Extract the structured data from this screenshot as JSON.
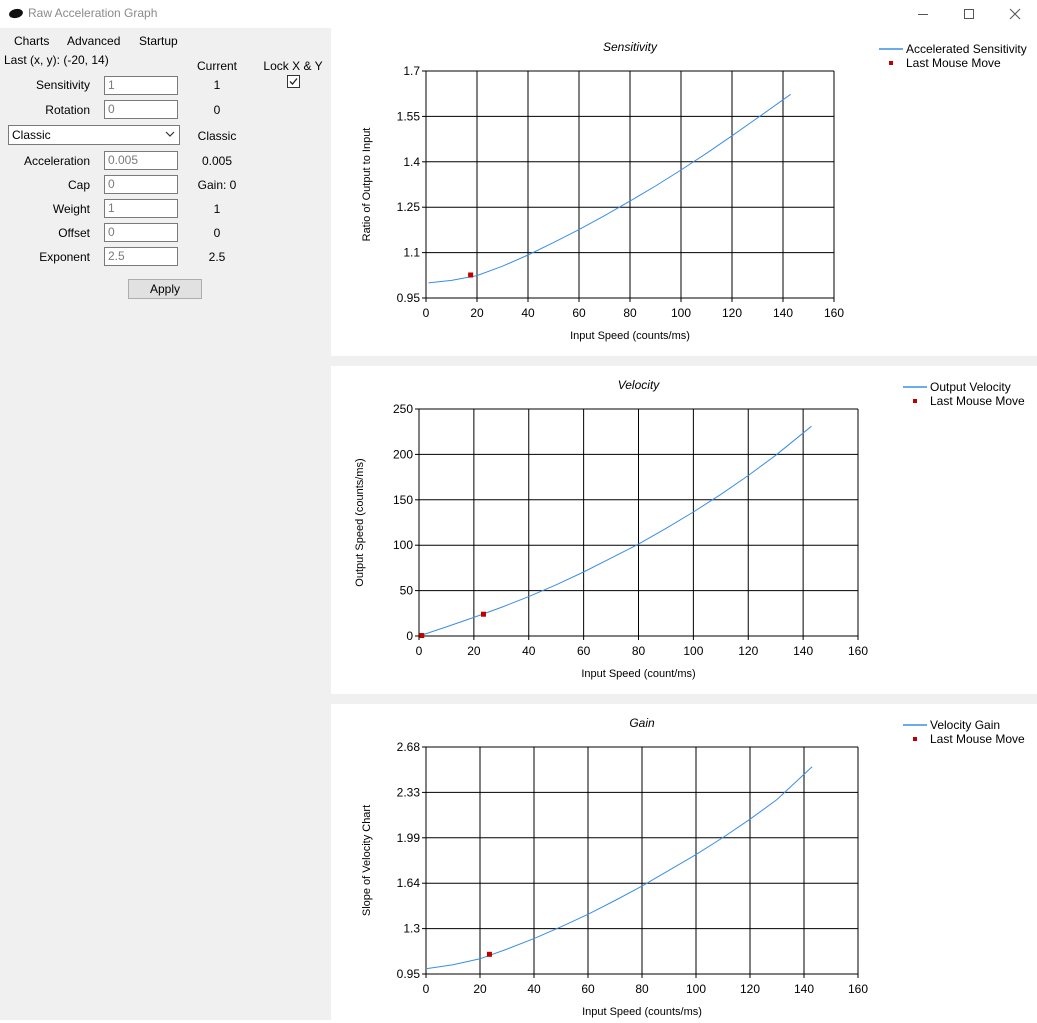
{
  "window": {
    "title": "Raw Acceleration Graph",
    "controls": {
      "minimize_icon": "minimize-icon",
      "maximize_icon": "maximize-icon",
      "close_icon": "close-icon"
    }
  },
  "menu": {
    "items": [
      "Charts",
      "Advanced",
      "Startup"
    ]
  },
  "left_panel": {
    "last_xy": "Last (x, y): (-20, 14)",
    "current_header": "Current",
    "lock_label": "Lock X & Y",
    "lock_checked": true,
    "sensitivity": {
      "label": "Sensitivity",
      "placeholder": "1",
      "current": "1"
    },
    "rotation": {
      "label": "Rotation",
      "placeholder": "0",
      "current": "0"
    },
    "accel_type": {
      "selected": "Classic",
      "current": "Classic"
    },
    "acceleration": {
      "label": "Acceleration",
      "placeholder": "0.005",
      "current": "0.005"
    },
    "cap": {
      "label": "Cap",
      "placeholder": "0",
      "current": "Gain: 0"
    },
    "weight": {
      "label": "Weight",
      "placeholder": "1",
      "current": "1"
    },
    "offset": {
      "label": "Offset",
      "placeholder": "0",
      "current": "0"
    },
    "exponent": {
      "label": "Exponent",
      "placeholder": "2.5",
      "current": "2.5"
    },
    "apply_label": "Apply"
  },
  "colors": {
    "series_line": "#3a8ee6",
    "last_move_marker": "#c00000",
    "panel_bg": "#f0f0f0"
  },
  "chart_data": [
    {
      "type": "line",
      "title": "Sensitivity",
      "xlabel": "Input Speed (counts/ms)",
      "ylabel": "Ratio of Output to Input",
      "xlim": [
        0,
        160
      ],
      "ylim": [
        0.95,
        1.7
      ],
      "xticks": [
        "0",
        "20",
        "40",
        "60",
        "80",
        "100",
        "120",
        "140",
        "160"
      ],
      "yticks": [
        "0.95",
        "1.1",
        "1.25",
        "1.4",
        "1.55",
        "1.7"
      ],
      "grid": true,
      "legend_position": "top-right",
      "series": [
        {
          "name": "Accelerated Sensitivity",
          "x": [
            1,
            10,
            20,
            30,
            40,
            50,
            60,
            70,
            80,
            90,
            100,
            110,
            120,
            130,
            143
          ],
          "y": [
            1.0,
            1.008,
            1.024,
            1.055,
            1.092,
            1.133,
            1.176,
            1.222,
            1.27,
            1.32,
            1.373,
            1.428,
            1.486,
            1.545,
            1.623
          ]
        }
      ],
      "markers": [
        {
          "name": "Last Mouse Move",
          "x": [
            17.5
          ],
          "y": [
            1.026
          ]
        }
      ]
    },
    {
      "type": "line",
      "title": "Velocity",
      "xlabel": "Input Speed (count/ms)",
      "ylabel": "Output Speed (counts/ms)",
      "xlim": [
        0,
        160
      ],
      "ylim": [
        0,
        250
      ],
      "xticks": [
        "0",
        "20",
        "40",
        "60",
        "80",
        "100",
        "120",
        "140",
        "160"
      ],
      "yticks": [
        "0",
        "50",
        "100",
        "150",
        "200",
        "250"
      ],
      "grid": true,
      "legend_position": "top-right",
      "series": [
        {
          "name": "Output Velocity",
          "x": [
            1,
            10,
            20,
            30,
            40,
            50,
            60,
            70,
            80,
            90,
            100,
            110,
            120,
            130,
            143
          ],
          "y": [
            1,
            10,
            20.5,
            31.5,
            43.4,
            56.4,
            70.5,
            85.8,
            101.2,
            118.5,
            136.6,
            156,
            176.8,
            199,
            231
          ]
        }
      ],
      "markers": [
        {
          "name": "Last Mouse Move",
          "x": [
            1,
            23.5
          ],
          "y": [
            0.5,
            24
          ]
        }
      ]
    },
    {
      "type": "line",
      "title": "Gain",
      "xlabel": "Input Speed (counts/ms)",
      "ylabel": "Slope of Velocity Chart",
      "xlim": [
        0,
        160
      ],
      "ylim": [
        0.95,
        2.68
      ],
      "xticks": [
        "0",
        "20",
        "40",
        "60",
        "80",
        "100",
        "120",
        "140",
        "160"
      ],
      "yticks": [
        "0.95",
        "1.3",
        "1.64",
        "1.99",
        "2.33",
        "2.68"
      ],
      "grid": true,
      "legend_position": "top-right",
      "series": [
        {
          "name": "Velocity Gain",
          "x": [
            0,
            10,
            20,
            30,
            40,
            50,
            60,
            70,
            80,
            90,
            100,
            110,
            120,
            130,
            143
          ],
          "y": [
            0.99,
            1.02,
            1.066,
            1.14,
            1.22,
            1.31,
            1.405,
            1.51,
            1.62,
            1.74,
            1.86,
            1.99,
            2.13,
            2.28,
            2.53
          ]
        }
      ],
      "markers": [
        {
          "name": "Last Mouse Move",
          "x": [
            23.5
          ],
          "y": [
            1.1
          ]
        }
      ]
    }
  ]
}
